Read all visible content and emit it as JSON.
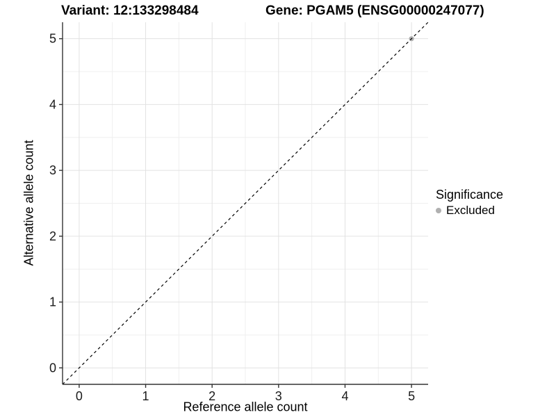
{
  "chart_data": {
    "type": "scatter",
    "title_left": "Variant: 12:133298484",
    "title_right": "Gene: PGAM5 (ENSG00000247077)",
    "xlabel": "Reference allele count",
    "ylabel": "Alternative allele count",
    "xlim": [
      -0.25,
      5.25
    ],
    "ylim": [
      -0.25,
      5.25
    ],
    "xticks": [
      0,
      1,
      2,
      3,
      4,
      5
    ],
    "yticks": [
      0,
      1,
      2,
      3,
      4,
      5
    ],
    "grid": {
      "major": true,
      "minor": true,
      "major_color": "#e2e2e2",
      "minor_color": "#efefef"
    },
    "reference_line": {
      "slope": 1,
      "intercept": 0,
      "style": "dashed",
      "color": "#000000"
    },
    "points": [
      {
        "x": 5,
        "y": 5,
        "significance": "Excluded",
        "color": "#b0b0b0"
      }
    ],
    "legend": {
      "title": "Significance",
      "position": "right",
      "entries": [
        {
          "label": "Excluded",
          "color": "#b0b0b0"
        }
      ]
    },
    "colors": {
      "axis_line": "#333333",
      "tick_label": "#1a1a1a",
      "background": "#ffffff"
    }
  }
}
